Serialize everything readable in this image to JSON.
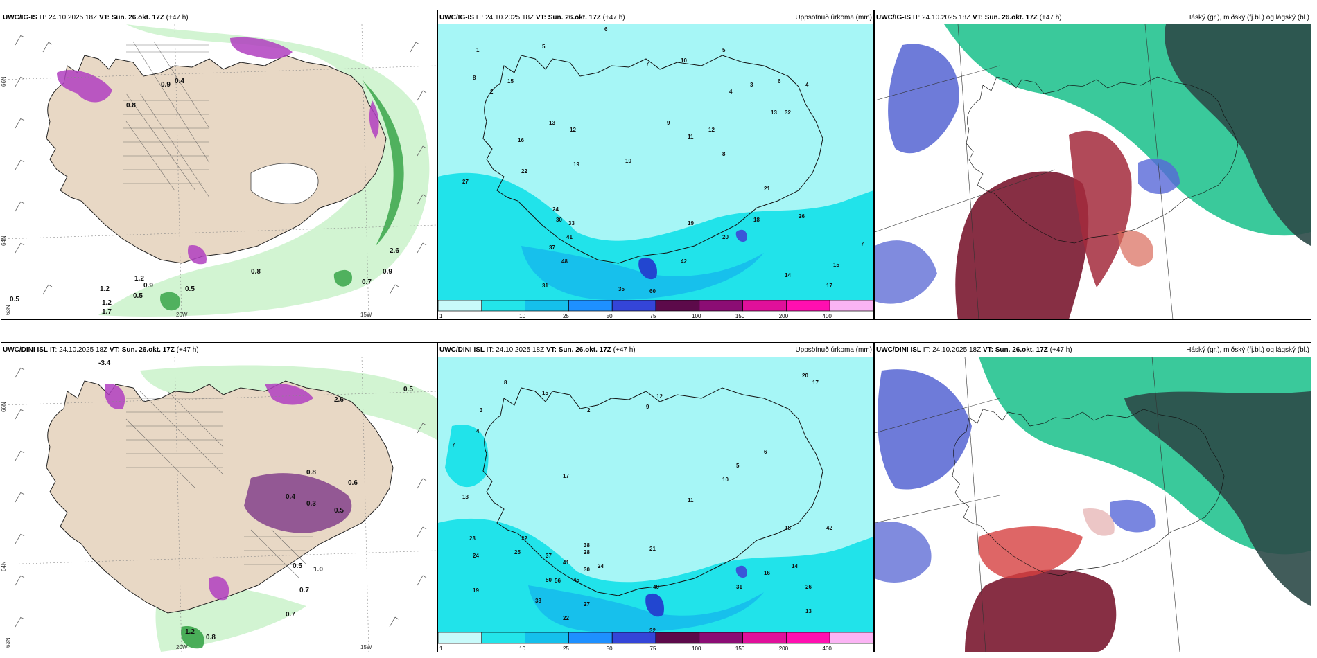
{
  "panels": {
    "top": {
      "wind": {
        "model": "UWC/IG-IS",
        "it_label": "IT:",
        "it": "24.10.2025 18Z",
        "vt_label": "VT:",
        "vt": "Sun. 26.okt. 17Z",
        "lead": "(+47 h)",
        "lat_labels": [
          "66N",
          "64N",
          "63N"
        ],
        "lon_labels": [
          "20W",
          "15W"
        ],
        "values": [
          "0.8",
          "0.5",
          "0.7",
          "0.9",
          "1.2",
          "0.9",
          "1.2",
          "0.8",
          "0.5",
          "2.6",
          "0.4",
          "0.9",
          "0.5",
          "1.2",
          "1.7"
        ]
      },
      "precip": {
        "model": "UWC/IG-IS",
        "it_label": "IT:",
        "it": "24.10.2025 18Z",
        "vt_label": "VT:",
        "vt": "Sun. 26.okt. 17Z",
        "lead": "(+47 h)",
        "title_right": "Uppsöfnuð úrkoma (mm)",
        "values": [
          "6",
          "8",
          "1",
          "2",
          "5",
          "7",
          "10",
          "15",
          "6",
          "5",
          "4",
          "3",
          "13",
          "16",
          "12",
          "19",
          "22",
          "24",
          "27",
          "30",
          "33",
          "37",
          "41",
          "48",
          "31",
          "35",
          "60",
          "42",
          "19",
          "20",
          "18",
          "14",
          "17",
          "13",
          "9",
          "11",
          "12",
          "8",
          "10",
          "32",
          "26",
          "21",
          "15",
          "7",
          "4"
        ]
      },
      "cloud": {
        "model": "UWC/IG-IS",
        "it_label": "IT:",
        "it": "24.10.2025 18Z",
        "vt_label": "VT:",
        "vt": "Sun. 26.okt. 17Z",
        "lead": "(+47 h)",
        "title_right": "Háský (gr.), miðský (fj.bl.) og lágský (bl.)"
      }
    },
    "bottom": {
      "wind": {
        "model": "UWC/DINI ISL",
        "it_label": "IT:",
        "it": "24.10.2025 18Z",
        "vt_label": "VT:",
        "vt": "Sun. 26.okt. 17Z",
        "lead": "(+47 h)",
        "lat_labels": [
          "66N",
          "64N",
          "63N"
        ],
        "lon_labels": [
          "20W",
          "15W"
        ],
        "values": [
          "-3.4",
          "0.5",
          "0.8",
          "0.7",
          "0.7",
          "0.5",
          "1.2",
          "2.6",
          "0.4",
          "0.3",
          "0.5",
          "0.6",
          "0.8",
          "1.0"
        ]
      },
      "precip": {
        "model": "UWC/DINI ISL",
        "it_label": "IT:",
        "it": "24.10.2025 18Z",
        "vt_label": "VT:",
        "vt": "Sun. 26.okt. 17Z",
        "lead": "(+47 h)",
        "title_right": "Uppsöfnuð úrkoma (mm)",
        "values": [
          "7",
          "3",
          "4",
          "8",
          "2",
          "9",
          "12",
          "13",
          "15",
          "17",
          "20",
          "22",
          "23",
          "24",
          "19",
          "25",
          "28",
          "30",
          "33",
          "37",
          "41",
          "45",
          "50",
          "56",
          "40",
          "38",
          "21",
          "26",
          "31",
          "14",
          "16",
          "18",
          "11",
          "10",
          "5",
          "6",
          "42",
          "32",
          "27",
          "17",
          "13",
          "24",
          "22"
        ]
      },
      "cloud": {
        "model": "UWC/DINI ISL",
        "it_label": "IT:",
        "it": "24.10.2025 18Z",
        "vt_label": "VT:",
        "vt": "Sun. 26.okt. 17Z",
        "lead": "(+47 h)",
        "title_right": "Háský (gr.), miðský (fj.bl.) og lágský (bl.)"
      }
    }
  },
  "precip_legend": {
    "ticks": [
      "1",
      "10",
      "25",
      "50",
      "75",
      "100",
      "150",
      "200",
      "400"
    ],
    "colors": [
      "#c8fafa",
      "#23e5ea",
      "#15c0ec",
      "#1e90ff",
      "#3445d8",
      "#5c0a4a",
      "#8b0d74",
      "#e0109a",
      "#ff0fb0",
      "#fbb4f4"
    ]
  },
  "colors": {
    "land": "#e8d8c5",
    "sea_precip": "#a6f6f6",
    "precip_mid": "#21e3ea",
    "precip_high": "#17aeea",
    "precip_max": "#2246d0",
    "green_light": "#cdf3cd",
    "green_dark": "#1a7a2c",
    "magenta": "#b040c0",
    "cloud_high": "#7a1830",
    "cloud_mid": "#17c08a",
    "cloud_low": "#4a5ad0",
    "cloud_dark": "#2c4a48"
  }
}
